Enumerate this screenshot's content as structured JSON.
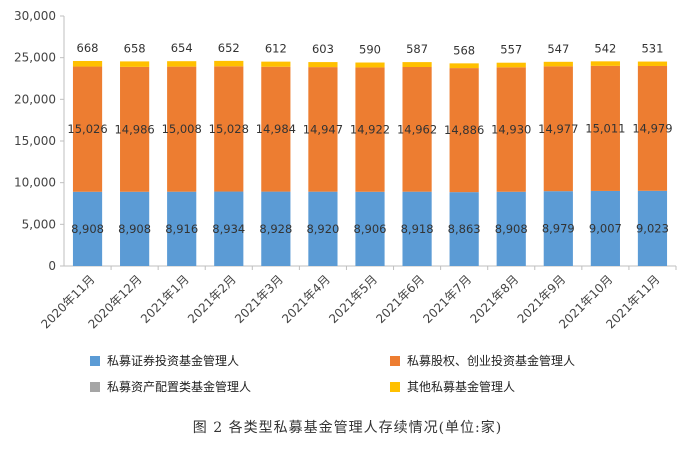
{
  "chart_data": {
    "type": "bar",
    "stacked": true,
    "categories": [
      "2020年11月",
      "2020年12月",
      "2021年1月",
      "2021年2月",
      "2021年3月",
      "2021年4月",
      "2021年5月",
      "2021年6月",
      "2021年7月",
      "2021年8月",
      "2021年9月",
      "2021年10月",
      "2021年11月"
    ],
    "series": [
      {
        "name": "私募证券投资基金管理人",
        "color": "#5b9bd5",
        "values": [
          8908,
          8908,
          8916,
          8934,
          8928,
          8920,
          8906,
          8918,
          8863,
          8908,
          8979,
          9007,
          9023
        ],
        "labels": [
          "8,908",
          "8,908",
          "8,916",
          "8,934",
          "8,928",
          "8,920",
          "8,906",
          "8,918",
          "8,863",
          "8,908",
          "8,979",
          "9,007",
          "9,023"
        ]
      },
      {
        "name": "私募股权、创业投资基金管理人",
        "color": "#ed7d31",
        "values": [
          15026,
          14986,
          15008,
          15028,
          14984,
          14947,
          14922,
          14962,
          14886,
          14930,
          14977,
          15011,
          14979
        ],
        "labels": [
          "15,026",
          "14,986",
          "15,008",
          "15,028",
          "14,984",
          "14,947",
          "14,922",
          "14,962",
          "14,886",
          "14,930",
          "14,977",
          "15,011",
          "14,979"
        ]
      },
      {
        "name": "私募资产配置类基金管理人",
        "color": "#a5a5a5",
        "values": [
          0,
          0,
          0,
          0,
          0,
          0,
          0,
          0,
          0,
          0,
          0,
          0,
          0
        ],
        "labels": []
      },
      {
        "name": "其他私募基金管理人",
        "color": "#ffc000",
        "values": [
          668,
          658,
          654,
          652,
          612,
          603,
          590,
          587,
          568,
          557,
          547,
          542,
          531
        ],
        "labels": [
          "668",
          "658",
          "654",
          "652",
          "612",
          "603",
          "590",
          "587",
          "568",
          "557",
          "547",
          "542",
          "531"
        ]
      }
    ],
    "yticks": [
      "0",
      "5,000",
      "10,000",
      "15,000",
      "20,000",
      "25,000",
      "30,000"
    ],
    "ylim": [
      0,
      30000
    ],
    "grid": false,
    "legend_position": "bottom"
  },
  "caption": "图 2 各类型私募基金管理人存续情况(单位:家)"
}
